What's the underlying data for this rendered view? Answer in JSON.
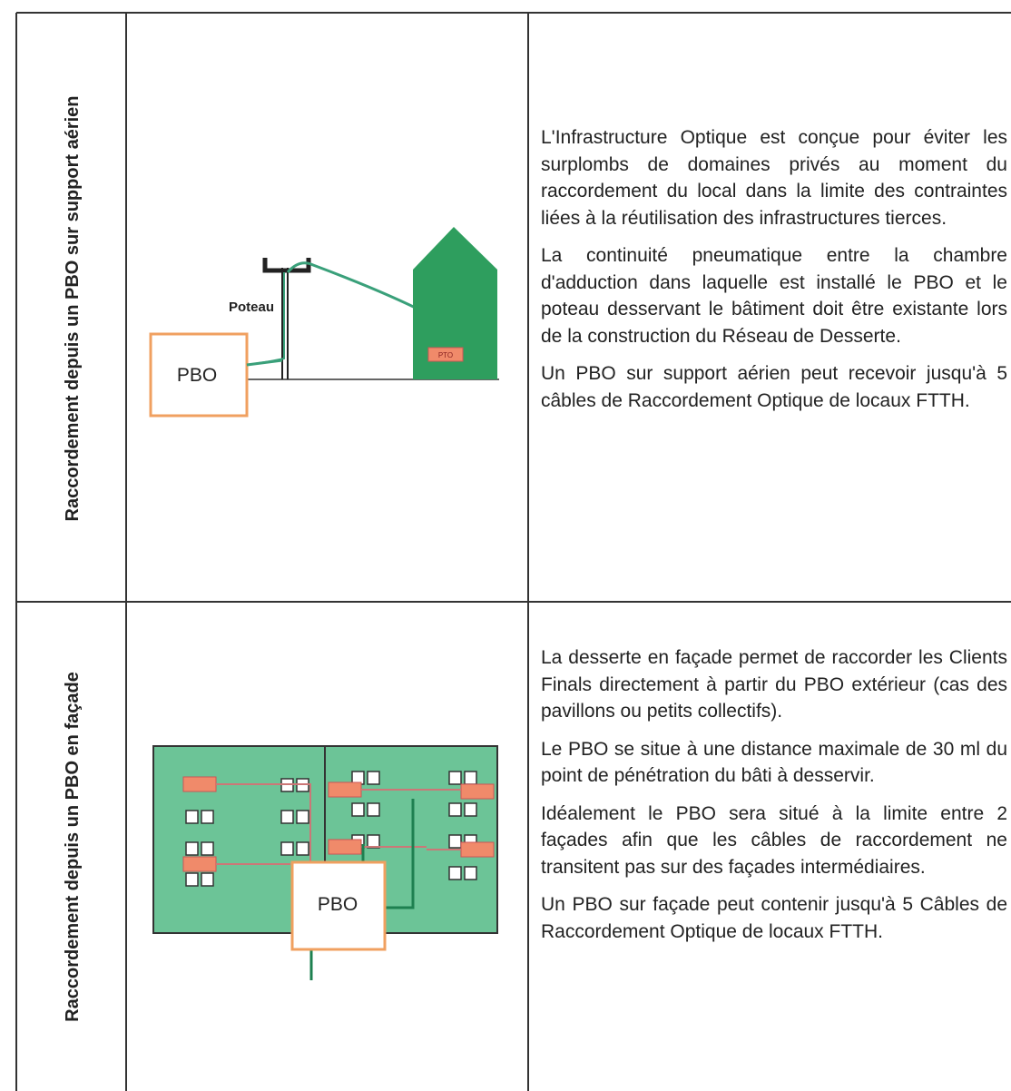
{
  "rows": [
    {
      "header": "Raccordement depuis un PBO sur support aérien",
      "diagram": {
        "pole_label": "Poteau",
        "box_label": "PBO",
        "outlet_label": "PTO"
      },
      "paragraphs": [
        "L'Infrastructure Optique est conçue pour éviter les surplombs de domaines privés au moment du raccordement du local dans la limite des contraintes liées à la réutilisation des infrastructures tierces.",
        "La continuité pneumatique entre la chambre d'adduction dans laquelle est installé le PBO et le poteau desservant le bâtiment doit être existante lors de la construction du Réseau de Desserte.",
        "Un PBO sur support aérien peut recevoir jusqu'à 5 câbles de Raccordement Optique de locaux FTTH."
      ]
    },
    {
      "header": "Raccordement depuis un PBO en façade",
      "diagram": {
        "box_label": "PBO"
      },
      "paragraphs": [
        "La desserte en façade permet de raccorder les Clients Finals directement à partir du PBO extérieur (cas des pavillons ou petits collectifs).",
        "Le PBO se situe à une distance maximale de 30 ml du point de pénétration du bâti à desservir.",
        "Idéalement le PBO sera situé à la limite entre 2 façades afin que les câbles de raccordement ne transitent pas sur des façades intermédiaires.",
        "Un PBO sur façade peut contenir jusqu'à 5 Câbles de Raccordement Optique de locaux FTTH."
      ]
    }
  ]
}
